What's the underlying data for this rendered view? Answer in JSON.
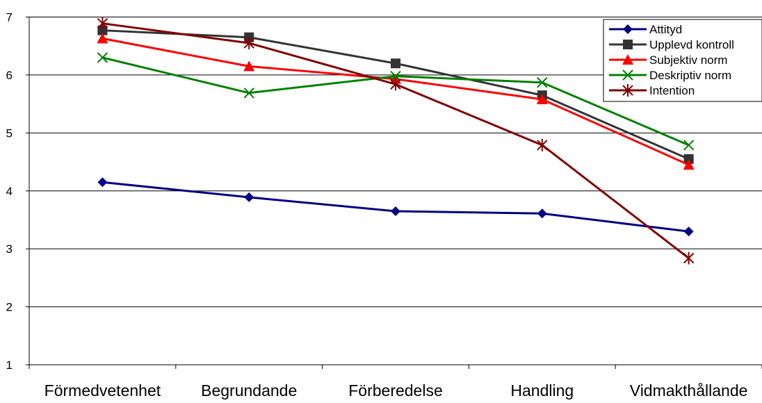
{
  "chart_data": {
    "type": "line",
    "title": "",
    "xlabel": "",
    "ylabel": "",
    "categories": [
      "Förmedvetenhet",
      "Begrundande",
      "Förberedelse",
      "Handling",
      "Vidmakthållande"
    ],
    "ylim": [
      1,
      7
    ],
    "yticks": [
      1,
      2,
      3,
      4,
      5,
      6,
      7
    ],
    "grid": "horizontal",
    "legend_position": "top-right",
    "series": [
      {
        "name": "Attityd",
        "color": "#000080",
        "marker": "diamond",
        "values": [
          4.15,
          3.89,
          3.65,
          3.61,
          3.3
        ]
      },
      {
        "name": "Upplevd kontroll",
        "color": "#333333",
        "marker": "square",
        "values": [
          6.77,
          6.65,
          6.2,
          5.65,
          4.55
        ]
      },
      {
        "name": "Subjektiv norm",
        "color": "#ff0000",
        "marker": "triangle",
        "values": [
          6.63,
          6.15,
          5.93,
          5.58,
          4.45
        ]
      },
      {
        "name": "Deskriptiv norm",
        "color": "#008000",
        "marker": "x",
        "values": [
          6.3,
          5.69,
          5.98,
          5.87,
          4.79
        ]
      },
      {
        "name": "Intention",
        "color": "#800000",
        "marker": "star",
        "values": [
          6.89,
          6.55,
          5.84,
          4.79,
          2.84
        ]
      }
    ]
  }
}
